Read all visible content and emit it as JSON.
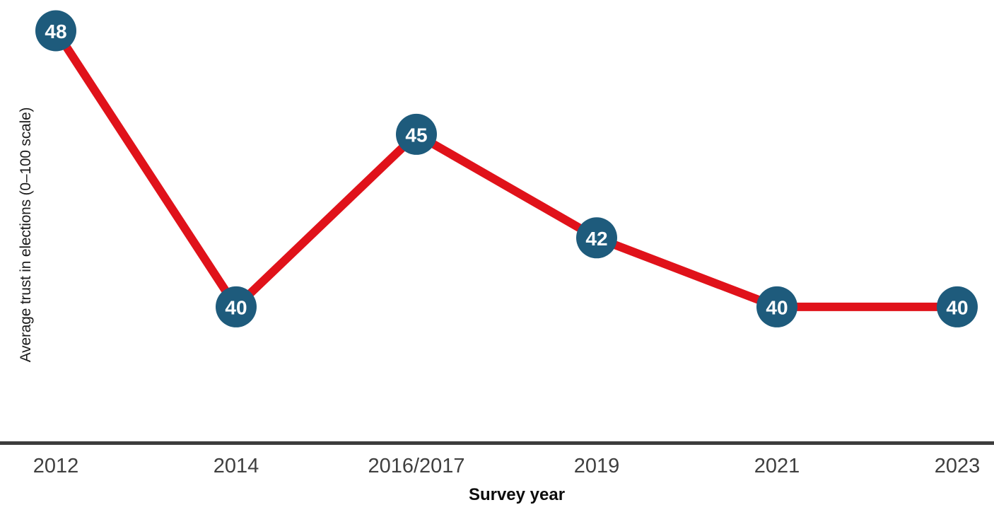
{
  "chart_data": {
    "type": "line",
    "categories": [
      "2012",
      "2014",
      "2016/2017",
      "2019",
      "2021",
      "2023"
    ],
    "values": [
      48,
      40,
      45,
      42,
      40,
      40
    ],
    "xlabel": "Survey year",
    "ylabel": "Average trust in elections (0–100 scale)",
    "ylim_visible": [
      40,
      48
    ],
    "grid": false,
    "legend": "none",
    "data_labels": "inside-markers",
    "colors": {
      "line": "#e0121a",
      "marker": "#1e5b7c",
      "marker_label": "#ffffff",
      "axis_line": "#3c3c3c",
      "tick_label": "#3f3f3f",
      "axis_title": "#0d0d0d",
      "background": "#ffffff"
    }
  }
}
